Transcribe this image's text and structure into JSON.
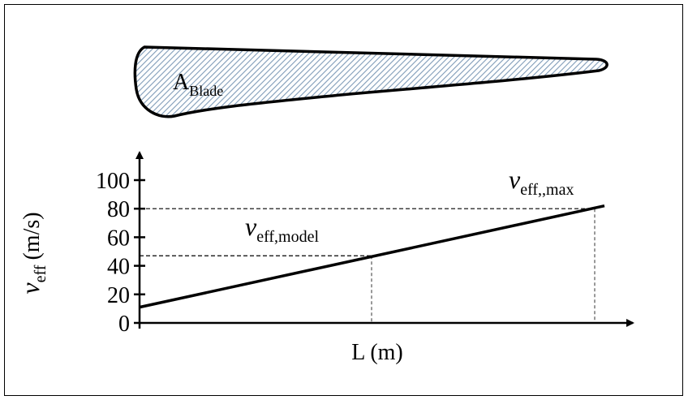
{
  "blade": {
    "label": "A",
    "subscript": "Blade"
  },
  "chart_data": {
    "type": "line",
    "y_label": {
      "symbol": "v",
      "subscript": "eff",
      "unit": "(m/s)"
    },
    "x_label": "L (m)",
    "ylim": [
      0,
      100
    ],
    "yticks": [
      0,
      20,
      40,
      60,
      80,
      100
    ],
    "values": [
      11,
      82
    ],
    "annotations": [
      {
        "symbol": "v",
        "subscript": "eff,model",
        "value": 47
      },
      {
        "symbol": "v",
        "subscript": "eff,,max",
        "value": 80
      }
    ]
  }
}
